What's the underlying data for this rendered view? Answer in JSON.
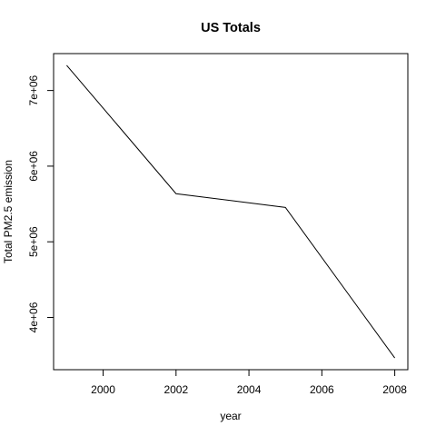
{
  "chart_data": {
    "type": "line",
    "title": "US Totals",
    "xlabel": "year",
    "ylabel": "Total PM2.5 emission",
    "x": [
      1999,
      2002,
      2005,
      2008
    ],
    "series": [
      {
        "values": [
          7332967,
          5635780,
          5454703,
          3464206
        ]
      }
    ],
    "xlim": [
      1999,
      2008
    ],
    "ylim": [
      3464206,
      7332967
    ],
    "xticks": [
      2000,
      2002,
      2004,
      2006,
      2008
    ],
    "xtick_labels": [
      "2000",
      "2002",
      "2004",
      "2006",
      "2008"
    ],
    "yticks": [
      4000000,
      5000000,
      6000000,
      7000000
    ],
    "ytick_labels": [
      "4e+06",
      "5e+06",
      "6e+06",
      "7e+06"
    ],
    "grid": false,
    "line_color": "#000000"
  }
}
